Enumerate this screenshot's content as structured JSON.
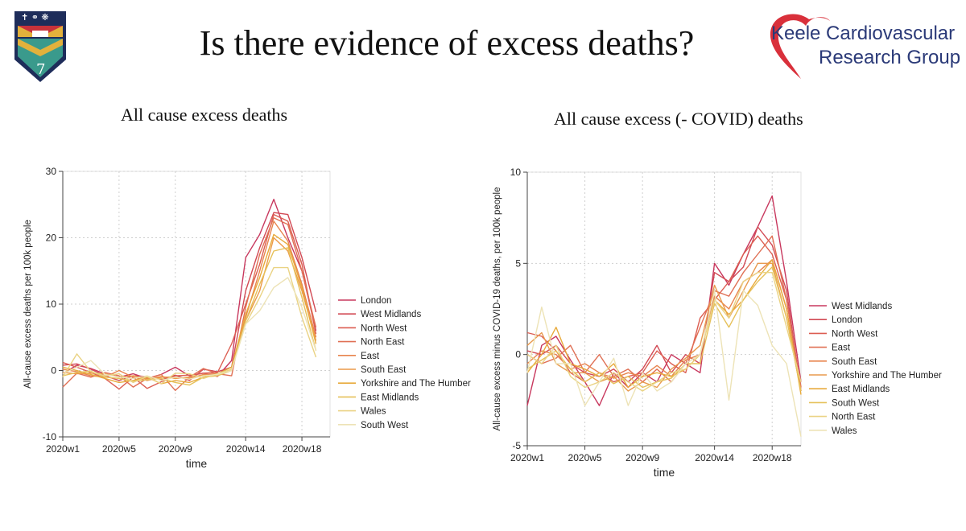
{
  "slide": {
    "title": "Is there evidence of excess deaths?",
    "logo_line1": "Keele Cardiovascular",
    "logo_line2": "Research Group",
    "crest_numeral": "7",
    "left_subtitle": "All cause excess deaths",
    "right_subtitle": "All cause excess (- COVID) deaths"
  },
  "colors": {
    "logo_text": "#2b3a78",
    "logo_heart": "#d9303b",
    "crest_navy": "#1e2d5a",
    "crest_gold": "#e2b13c",
    "crest_teal": "#3a9a8c",
    "crest_red": "#c8323a"
  },
  "chart_data": [
    {
      "type": "line",
      "title": "All cause excess deaths",
      "xlabel": "time",
      "ylabel": "All-cause excess deaths per 100k people",
      "xlim": [
        1,
        20
      ],
      "ylim": [
        -10,
        30
      ],
      "yticks": [
        -10,
        0,
        10,
        20,
        30
      ],
      "xticks": [
        {
          "value": 1,
          "label": "2020w1"
        },
        {
          "value": 5,
          "label": "2020w5"
        },
        {
          "value": 9,
          "label": "2020w9"
        },
        {
          "value": 14,
          "label": "2020w14"
        },
        {
          "value": 18,
          "label": "2020w18"
        }
      ],
      "grid": true,
      "legend_position": "right",
      "series": [
        {
          "name": "London",
          "color": "#c8385e",
          "values": [
            -0.5,
            0.8,
            0.3,
            -0.5,
            -1.0,
            -0.5,
            -1.2,
            -0.6,
            0.5,
            -0.8,
            -0.4,
            -0.9,
            1.5,
            17.0,
            20.5,
            25.8,
            20.0,
            15.0,
            6.0
          ]
        },
        {
          "name": "West Midlands",
          "color": "#d24a55",
          "values": [
            0.8,
            1.0,
            0.2,
            -0.8,
            -1.5,
            -0.8,
            -0.9,
            -1.4,
            -0.7,
            -1.5,
            0.2,
            -0.2,
            0.5,
            12.0,
            18.5,
            23.8,
            23.5,
            17.0,
            8.8
          ]
        },
        {
          "name": "North West",
          "color": "#dc5e52",
          "values": [
            1.2,
            0.5,
            -0.3,
            -1.2,
            -2.8,
            -1.0,
            -2.7,
            -1.7,
            -0.8,
            -0.7,
            -0.4,
            -0.3,
            4.0,
            10.0,
            16.0,
            23.5,
            22.5,
            16.0,
            5.5
          ]
        },
        {
          "name": "North East",
          "color": "#e07055",
          "values": [
            -2.5,
            -0.4,
            -1.0,
            -0.3,
            -0.8,
            -2.5,
            -1.2,
            -0.6,
            -3.0,
            -1.0,
            0.3,
            -0.5,
            -0.8,
            9.5,
            17.5,
            23.0,
            22.0,
            15.0,
            6.5
          ]
        },
        {
          "name": "East",
          "color": "#e8844e",
          "values": [
            0.2,
            -0.2,
            -0.8,
            -1.0,
            0.0,
            -1.0,
            -1.5,
            -1.0,
            -1.0,
            -1.2,
            -0.6,
            -0.5,
            0.0,
            8.0,
            15.0,
            22.5,
            19.5,
            13.0,
            5.0
          ]
        },
        {
          "name": "South East",
          "color": "#ec9a48",
          "values": [
            -0.3,
            -0.5,
            -0.4,
            -0.5,
            -1.0,
            -0.8,
            -1.3,
            -0.9,
            -1.2,
            -1.0,
            -0.7,
            -0.8,
            0.2,
            7.5,
            12.0,
            20.0,
            18.0,
            12.0,
            4.5
          ]
        },
        {
          "name": "Yorkshire and The Humber",
          "color": "#e8aa3c",
          "values": [
            0.5,
            0.0,
            -0.6,
            -1.2,
            -1.8,
            -1.5,
            -1.0,
            -2.0,
            -1.5,
            -1.8,
            -1.0,
            -0.5,
            0.5,
            8.5,
            14.0,
            20.5,
            19.0,
            12.5,
            4.0
          ]
        },
        {
          "name": "East Midlands",
          "color": "#e6c15a",
          "values": [
            -0.8,
            -0.3,
            -0.1,
            -1.0,
            -1.2,
            -1.6,
            -1.4,
            -1.2,
            -1.8,
            -2.2,
            -1.0,
            -0.8,
            0.0,
            7.5,
            13.0,
            18.0,
            18.5,
            11.0,
            3.0
          ]
        },
        {
          "name": "Wales",
          "color": "#ead384",
          "values": [
            -1.0,
            2.5,
            -0.2,
            -0.8,
            -0.5,
            -1.8,
            -0.9,
            -2.0,
            -0.4,
            -0.5,
            -1.2,
            -0.5,
            0.2,
            7.0,
            11.0,
            15.5,
            15.5,
            8.0,
            2.0
          ]
        },
        {
          "name": "South West",
          "color": "#ede3b6",
          "values": [
            -0.5,
            0.5,
            1.5,
            -0.6,
            -1.0,
            -1.2,
            -0.8,
            -1.5,
            -1.0,
            -1.3,
            -0.8,
            -0.6,
            0.0,
            7.0,
            9.0,
            12.5,
            14.0,
            9.5,
            3.0
          ]
        }
      ]
    },
    {
      "type": "line",
      "title": "All cause excess (- COVID) deaths",
      "xlabel": "time",
      "ylabel": "All-cause excess minus COVID-19 deaths, per 100k people",
      "xlim": [
        1,
        20
      ],
      "ylim": [
        -5,
        10
      ],
      "yticks": [
        -5,
        0,
        5,
        10
      ],
      "xticks": [
        {
          "value": 1,
          "label": "2020w1"
        },
        {
          "value": 5,
          "label": "2020w5"
        },
        {
          "value": 9,
          "label": "2020w9"
        },
        {
          "value": 14,
          "label": "2020w14"
        },
        {
          "value": 18,
          "label": "2020w18"
        }
      ],
      "grid": true,
      "legend_position": "right",
      "series": [
        {
          "name": "West Midlands",
          "color": "#c8385e",
          "values": [
            -2.8,
            0.5,
            1.0,
            -0.3,
            -1.5,
            -2.8,
            -1.0,
            -1.8,
            -1.0,
            -1.5,
            0.0,
            -0.5,
            -1.0,
            5.0,
            3.8,
            5.5,
            7.0,
            8.7,
            4.0,
            -1.5
          ]
        },
        {
          "name": "London",
          "color": "#d24a55",
          "values": [
            0.2,
            0.0,
            0.5,
            -0.5,
            -1.0,
            -1.2,
            -0.8,
            -1.5,
            -0.8,
            0.5,
            -1.0,
            0.0,
            -0.5,
            4.5,
            4.0,
            4.8,
            7.0,
            6.0,
            3.5,
            -2.0
          ]
        },
        {
          "name": "North West",
          "color": "#dc5e52",
          "values": [
            1.2,
            1.0,
            0.2,
            -1.0,
            -1.5,
            -1.0,
            -1.5,
            -1.2,
            -1.0,
            0.2,
            -0.5,
            -1.0,
            2.0,
            3.0,
            4.0,
            5.5,
            6.5,
            5.5,
            3.0,
            -1.8
          ]
        },
        {
          "name": "East",
          "color": "#e07055",
          "values": [
            0.0,
            -0.5,
            -0.2,
            0.5,
            -1.0,
            0.0,
            -1.2,
            -0.8,
            -1.5,
            -0.8,
            -1.5,
            -0.5,
            1.5,
            3.5,
            3.2,
            4.5,
            5.5,
            6.5,
            3.0,
            -1.8
          ]
        },
        {
          "name": "South East",
          "color": "#e8844e",
          "values": [
            -0.5,
            0.2,
            0.0,
            -0.8,
            -0.5,
            -1.0,
            -1.3,
            -1.0,
            -1.2,
            -0.6,
            -1.2,
            -0.3,
            0.0,
            3.2,
            2.5,
            4.0,
            4.5,
            5.2,
            2.5,
            -2.0
          ]
        },
        {
          "name": "Yorkshire and The Humber",
          "color": "#e89a4e",
          "values": [
            0.5,
            1.2,
            -0.5,
            -1.0,
            -1.0,
            -1.5,
            -1.2,
            -2.0,
            -1.5,
            -1.8,
            -0.8,
            -0.2,
            0.5,
            3.8,
            2.0,
            3.5,
            5.0,
            5.0,
            2.0,
            -2.0
          ]
        },
        {
          "name": "East Midlands",
          "color": "#e8aa3c",
          "values": [
            -1.0,
            0.0,
            1.5,
            -0.5,
            -0.8,
            -1.2,
            -0.5,
            -1.8,
            -1.2,
            -1.0,
            -1.2,
            -0.8,
            0.0,
            3.0,
            2.2,
            3.0,
            4.2,
            5.2,
            2.5,
            -2.2
          ]
        },
        {
          "name": "South West",
          "color": "#e6c15a",
          "values": [
            -0.8,
            -0.3,
            0.2,
            -0.8,
            -1.5,
            -1.0,
            -1.6,
            -1.2,
            -1.8,
            -1.5,
            -1.3,
            -0.5,
            -0.5,
            2.8,
            1.5,
            3.0,
            4.0,
            4.8,
            2.0,
            -2.0
          ]
        },
        {
          "name": "North East",
          "color": "#ead384",
          "values": [
            0.0,
            -0.5,
            0.5,
            -1.2,
            -1.8,
            -1.5,
            -1.0,
            -1.5,
            -2.0,
            -1.5,
            -1.0,
            -0.8,
            0.0,
            3.0,
            2.0,
            4.0,
            4.5,
            4.5,
            1.5,
            -1.5
          ]
        },
        {
          "name": "Wales",
          "color": "#ede3b6",
          "values": [
            -1.0,
            2.6,
            -0.5,
            -0.5,
            -2.8,
            -1.5,
            -0.2,
            -2.8,
            -1.0,
            -2.0,
            -1.5,
            -0.5,
            0.0,
            3.5,
            -2.5,
            3.5,
            2.7,
            0.5,
            -0.5,
            -4.5
          ]
        }
      ]
    }
  ]
}
